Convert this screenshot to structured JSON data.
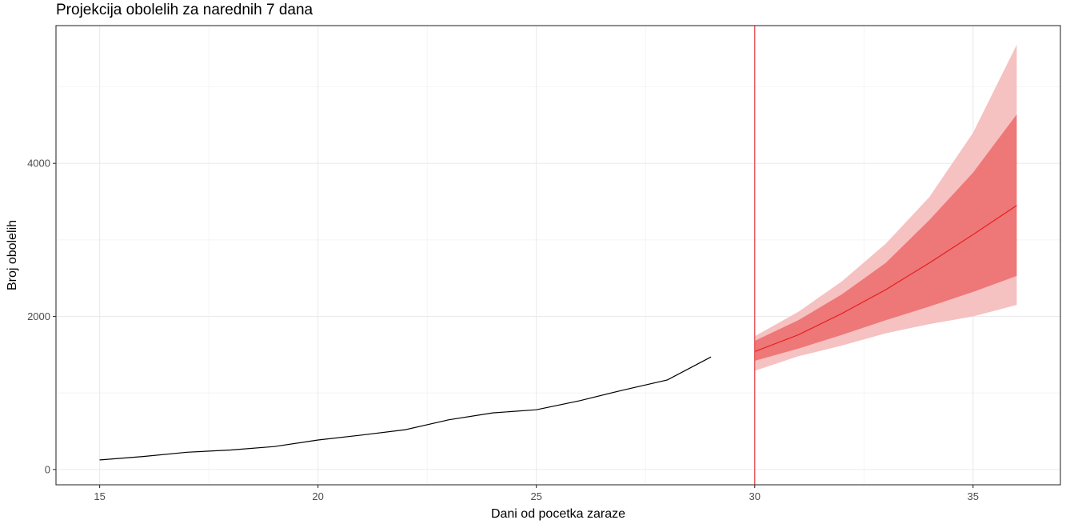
{
  "chart_data": {
    "type": "line",
    "title": "Projekcija obolelih za narednih 7 dana",
    "xlabel": "Dani od pocetka zaraze",
    "ylabel": "Broj obolelih",
    "xlim": [
      14,
      37
    ],
    "ylim": [
      -200,
      5800
    ],
    "x_ticks": [
      15,
      20,
      25,
      30,
      35
    ],
    "x_tick_labels": [
      "15",
      "20",
      "25",
      "30",
      "35"
    ],
    "y_ticks": [
      0,
      2000,
      4000
    ],
    "y_tick_labels": [
      "0",
      "2000",
      "4000"
    ],
    "grid": true,
    "legend": "none",
    "vline": {
      "x": 30,
      "color": "#e8555a"
    },
    "observed": {
      "color": "#000000",
      "x": [
        15,
        16,
        17,
        18,
        19,
        20,
        21,
        22,
        23,
        24,
        25,
        26,
        27,
        28,
        29
      ],
      "y": [
        125,
        170,
        225,
        255,
        300,
        385,
        450,
        520,
        650,
        740,
        780,
        900,
        1040,
        1170,
        1470
      ]
    },
    "forecast": {
      "line_color": "#e41a1c",
      "band80_color": "#ee7777",
      "band95_color": "#f5c1c1",
      "x": [
        30,
        31,
        32,
        33,
        34,
        35,
        36
      ],
      "mean": [
        1540,
        1760,
        2040,
        2350,
        2700,
        3070,
        3450
      ],
      "lo80": [
        1420,
        1580,
        1760,
        1950,
        2130,
        2320,
        2530
      ],
      "hi80": [
        1680,
        1950,
        2290,
        2700,
        3260,
        3880,
        4640
      ],
      "lo95": [
        1290,
        1480,
        1620,
        1780,
        1900,
        2000,
        2150
      ],
      "hi95": [
        1740,
        2060,
        2460,
        2950,
        3560,
        4400,
        5550
      ]
    }
  }
}
